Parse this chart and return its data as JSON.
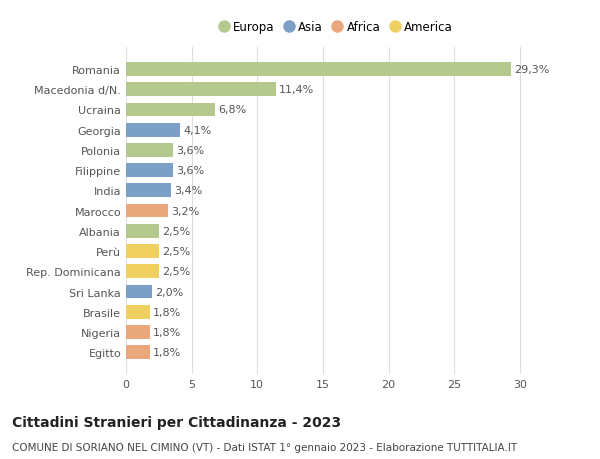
{
  "categories": [
    "Romania",
    "Macedonia d/N.",
    "Ucraina",
    "Georgia",
    "Polonia",
    "Filippine",
    "India",
    "Marocco",
    "Albania",
    "Perù",
    "Rep. Dominicana",
    "Sri Lanka",
    "Brasile",
    "Nigeria",
    "Egitto"
  ],
  "values": [
    29.3,
    11.4,
    6.8,
    4.1,
    3.6,
    3.6,
    3.4,
    3.2,
    2.5,
    2.5,
    2.5,
    2.0,
    1.8,
    1.8,
    1.8
  ],
  "labels": [
    "29,3%",
    "11,4%",
    "6,8%",
    "4,1%",
    "3,6%",
    "3,6%",
    "3,4%",
    "3,2%",
    "2,5%",
    "2,5%",
    "2,5%",
    "2,0%",
    "1,8%",
    "1,8%",
    "1,8%"
  ],
  "continents": [
    "Europa",
    "Europa",
    "Europa",
    "Asia",
    "Europa",
    "Asia",
    "Asia",
    "Africa",
    "Europa",
    "America",
    "America",
    "Asia",
    "America",
    "Africa",
    "Africa"
  ],
  "continent_colors": {
    "Europa": "#b5c98e",
    "Asia": "#7b9fc7",
    "Africa": "#e8a87c",
    "America": "#f0d060"
  },
  "legend_order": [
    "Europa",
    "Asia",
    "Africa",
    "America"
  ],
  "title": "Cittadini Stranieri per Cittadinanza - 2023",
  "subtitle": "COMUNE DI SORIANO NEL CIMINO (VT) - Dati ISTAT 1° gennaio 2023 - Elaborazione TUTTITALIA.IT",
  "xlim": [
    0,
    32
  ],
  "xticks": [
    0,
    5,
    10,
    15,
    20,
    25,
    30
  ],
  "background_color": "#ffffff",
  "grid_color": "#dddddd",
  "bar_height": 0.68,
  "label_fontsize": 8,
  "tick_fontsize": 8,
  "title_fontsize": 10,
  "subtitle_fontsize": 7.5
}
